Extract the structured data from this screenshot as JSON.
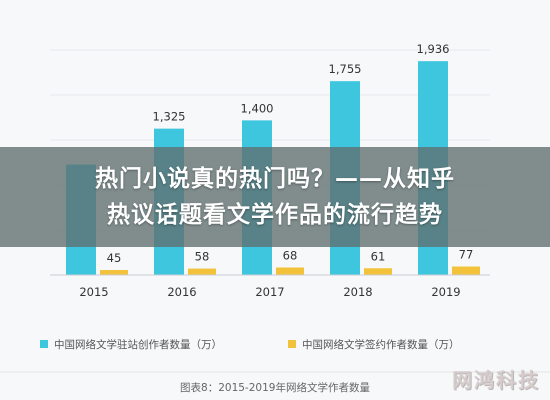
{
  "chart_data": {
    "type": "bar",
    "categories": [
      "2015",
      "2016",
      "2017",
      "2018",
      "2019"
    ],
    "series": [
      {
        "name": "中国网络文学驻站创作者数量（万）",
        "color": "#3ec6df",
        "values": [
          1000,
          1325,
          1400,
          1755,
          1936
        ]
      },
      {
        "name": "中国网络文学签约作者数量（万）",
        "color": "#f2c33a",
        "values": [
          45,
          58,
          68,
          61,
          77
        ]
      }
    ],
    "labels": {
      "series0": [
        "",
        "1,325",
        "1,400",
        "1,755",
        "1,936"
      ],
      "series1": [
        "45",
        "58",
        "68",
        "61",
        "77"
      ]
    },
    "ylim": [
      0,
      2200
    ],
    "grid": true,
    "legend_position": "bottom",
    "caption": "图表8：2015-2019年网络文学作者数量"
  },
  "overlay": {
    "line1": "热门小说真的热门吗？——从知乎",
    "line2": "热议话题看文学作品的流行趋势"
  },
  "watermark": "网鸿科技"
}
